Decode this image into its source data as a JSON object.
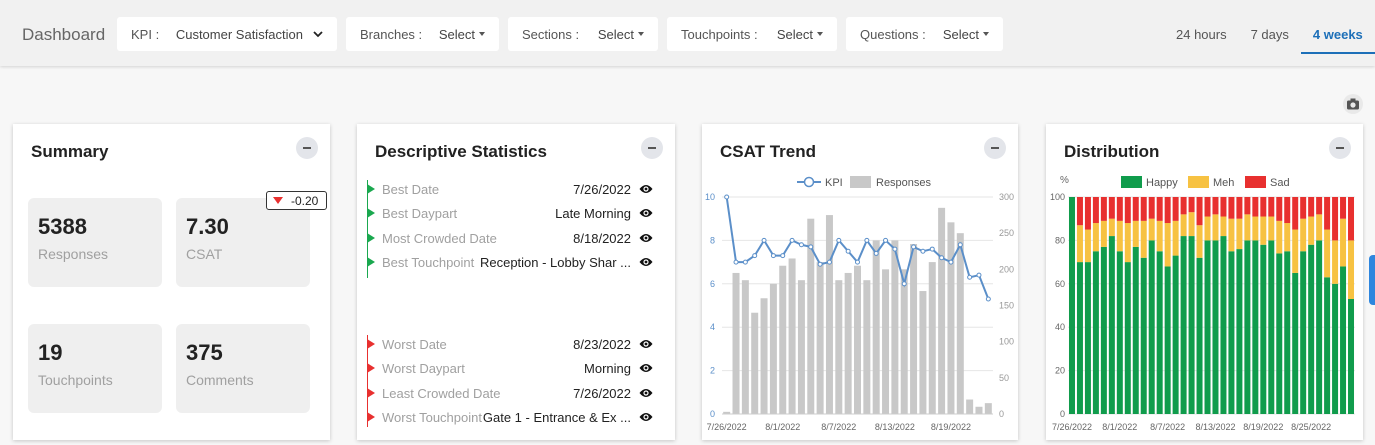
{
  "header": {
    "title": "Dashboard",
    "filters": [
      {
        "label": "KPI :",
        "value": "Customer Satisfaction"
      },
      {
        "label": "Branches :",
        "value": "Select"
      },
      {
        "label": "Sections :",
        "value": "Select"
      },
      {
        "label": "Touchpoints :",
        "value": "Select"
      },
      {
        "label": "Questions :",
        "value": "Select"
      }
    ],
    "time_ranges": [
      "24 hours",
      "7 days",
      "4 weeks"
    ],
    "active_time_range": 2
  },
  "summary": {
    "title": "Summary",
    "tiles": [
      {
        "value": "5388",
        "label": "Responses"
      },
      {
        "value": "7.30",
        "label": "CSAT",
        "delta": "-0.20"
      },
      {
        "value": "19",
        "label": "Touchpoints"
      },
      {
        "value": "375",
        "label": "Comments"
      }
    ]
  },
  "descriptive_statistics": {
    "title": "Descriptive Statistics",
    "best": [
      {
        "label": "Best Date",
        "value": "7/26/2022"
      },
      {
        "label": "Best Daypart",
        "value": "Late Morning"
      },
      {
        "label": "Most Crowded Date",
        "value": "8/18/2022"
      },
      {
        "label": "Best Touchpoint",
        "value": "Reception - Lobby Shar ..."
      }
    ],
    "worst": [
      {
        "label": "Worst Date",
        "value": "8/23/2022"
      },
      {
        "label": "Worst Daypart",
        "value": "Morning"
      },
      {
        "label": "Least Crowded Date",
        "value": "7/26/2022"
      },
      {
        "label": "Worst Touchpoint",
        "value": "Gate 1 - Entrance & Ex ..."
      }
    ]
  },
  "csat_trend": {
    "type": "combo",
    "title": "CSAT Trend",
    "categories": [
      "7/26/2022",
      null,
      null,
      null,
      null,
      null,
      "8/1/2022",
      null,
      null,
      null,
      null,
      null,
      "8/7/2022",
      null,
      null,
      null,
      null,
      null,
      "8/13/2022",
      null,
      null,
      null,
      null,
      null,
      "8/19/2022",
      null,
      null,
      null,
      null
    ],
    "series": [
      {
        "name": "KPI",
        "type": "line",
        "color": "#5b8fc9",
        "values": [
          10,
          7.0,
          7.0,
          7.3,
          8.0,
          7.3,
          7.3,
          8.0,
          7.8,
          7.7,
          6.9,
          7.0,
          8.0,
          7.5,
          7.0,
          8.0,
          7.4,
          8.0,
          7.6,
          6.0,
          7.7,
          7.5,
          7.6,
          7.2,
          7.0,
          7.8,
          6.3,
          6.4,
          5.3
        ]
      },
      {
        "name": "Responses",
        "type": "bar",
        "color": "#c8c8c8",
        "axis": "y2",
        "values": [
          3,
          195,
          185,
          140,
          160,
          180,
          205,
          215,
          185,
          270,
          210,
          275,
          185,
          195,
          205,
          185,
          240,
          200,
          240,
          200,
          235,
          170,
          210,
          285,
          265,
          250,
          20,
          10,
          15
        ]
      }
    ],
    "ylim": [
      0,
      10
    ],
    "yticks": [
      0,
      2,
      4,
      6,
      8,
      10
    ],
    "y2lim": [
      0,
      300
    ],
    "y2ticks": [
      0,
      50,
      100,
      150,
      200,
      250,
      300
    ],
    "grid": true
  },
  "distribution": {
    "type": "stacked_bar",
    "title": "Distribution",
    "ylabel": "%",
    "categories": [
      "7/26/2022",
      null,
      null,
      null,
      null,
      null,
      "8/1/2022",
      null,
      null,
      null,
      null,
      null,
      "8/7/2022",
      null,
      null,
      null,
      null,
      null,
      "8/13/2022",
      null,
      null,
      null,
      null,
      null,
      "8/19/2022",
      null,
      null,
      null,
      null,
      null,
      "8/25/2022",
      null,
      null,
      null,
      null,
      null
    ],
    "series": [
      {
        "name": "Happy",
        "color": "#109c4c",
        "values": [
          100,
          70,
          70,
          75,
          77,
          82,
          75,
          70,
          77,
          72,
          80,
          75,
          68,
          73,
          82,
          82,
          72,
          80,
          80,
          82,
          75,
          76,
          80,
          80,
          78,
          80,
          74,
          75,
          65,
          75,
          78,
          80,
          63,
          60,
          68,
          53
        ]
      },
      {
        "name": "Meh",
        "color": "#f7c242",
        "values": [
          0,
          17,
          15,
          13,
          12,
          8,
          14,
          18,
          12,
          17,
          10,
          14,
          20,
          16,
          10,
          11,
          15,
          11,
          12,
          9,
          15,
          14,
          12,
          11,
          13,
          11,
          15,
          13,
          20,
          15,
          13,
          12,
          22,
          20,
          22,
          27
        ]
      },
      {
        "name": "Sad",
        "color": "#e8302f",
        "values": [
          0,
          13,
          15,
          12,
          11,
          10,
          11,
          12,
          11,
          11,
          10,
          11,
          12,
          11,
          8,
          7,
          13,
          9,
          8,
          9,
          10,
          10,
          8,
          9,
          9,
          9,
          11,
          12,
          15,
          10,
          9,
          8,
          15,
          20,
          10,
          20
        ]
      }
    ],
    "ylim": [
      0,
      100
    ],
    "yticks": [
      0,
      20,
      40,
      60,
      80,
      100
    ],
    "grid": true
  }
}
